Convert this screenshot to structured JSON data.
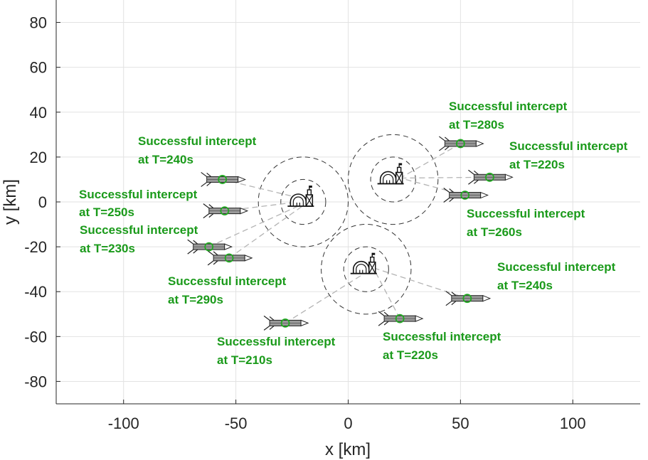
{
  "chart_data": {
    "type": "scatter",
    "title": "",
    "xlabel": "x [km]",
    "ylabel": "y [km]",
    "xlim": [
      -130,
      130
    ],
    "ylim": [
      -90,
      90
    ],
    "xticks": [
      -100,
      -50,
      0,
      50,
      100
    ],
    "yticks": [
      -80,
      -60,
      -40,
      -20,
      0,
      20,
      40,
      60,
      80
    ],
    "xtick_labels": [
      "-100",
      "-50",
      "0",
      "50",
      "100"
    ],
    "ytick_labels": [
      "-80",
      "-60",
      "-40",
      "-20",
      "0",
      "20",
      "40",
      "60",
      "80"
    ],
    "grid": true,
    "colors": {
      "annotation": "#1a9a1a",
      "intercept": "#22aa22",
      "missile": "#9a9a9a",
      "ring": "#333333",
      "track": "#b4b4b4",
      "grid": "#e2e2e2"
    },
    "bases": [
      {
        "name": "base-west",
        "x": -20,
        "y": 0,
        "inner_radius": 10,
        "outer_radius": 20
      },
      {
        "name": "base-northeast",
        "x": 20,
        "y": 10,
        "inner_radius": 10,
        "outer_radius": 20
      },
      {
        "name": "base-south",
        "x": 8,
        "y": -30,
        "inner_radius": 10,
        "outer_radius": 20
      }
    ],
    "intercepts": [
      {
        "x": -56,
        "y": 10,
        "base": 0,
        "label": "Successful intercept",
        "time": "at T=240s"
      },
      {
        "x": -55,
        "y": -4,
        "base": 0,
        "label": "Successful intercept",
        "time": "at T=250s"
      },
      {
        "x": -62,
        "y": -20,
        "base": 0,
        "label": "Successful intercept",
        "time": "at T=230s"
      },
      {
        "x": -53,
        "y": -25,
        "base": 0,
        "label": "Successful intercept",
        "time": "at T=290s"
      },
      {
        "x": -28,
        "y": -54,
        "base": 2,
        "label": "Successful intercept",
        "time": "at T=210s"
      },
      {
        "x": 23,
        "y": -52,
        "base": 2,
        "label": "Successful intercept",
        "time": "at T=220s"
      },
      {
        "x": 53,
        "y": -43,
        "base": 2,
        "label": "Successful intercept",
        "time": "at T=240s"
      },
      {
        "x": 50,
        "y": 26,
        "base": 1,
        "label": "Successful intercept",
        "time": "at T=280s"
      },
      {
        "x": 63,
        "y": 11,
        "base": 1,
        "label": "Successful intercept",
        "time": "at T=220s"
      },
      {
        "x": 52,
        "y": 3,
        "base": 1,
        "label": "Successful intercept",
        "time": "at T=260s"
      }
    ]
  }
}
